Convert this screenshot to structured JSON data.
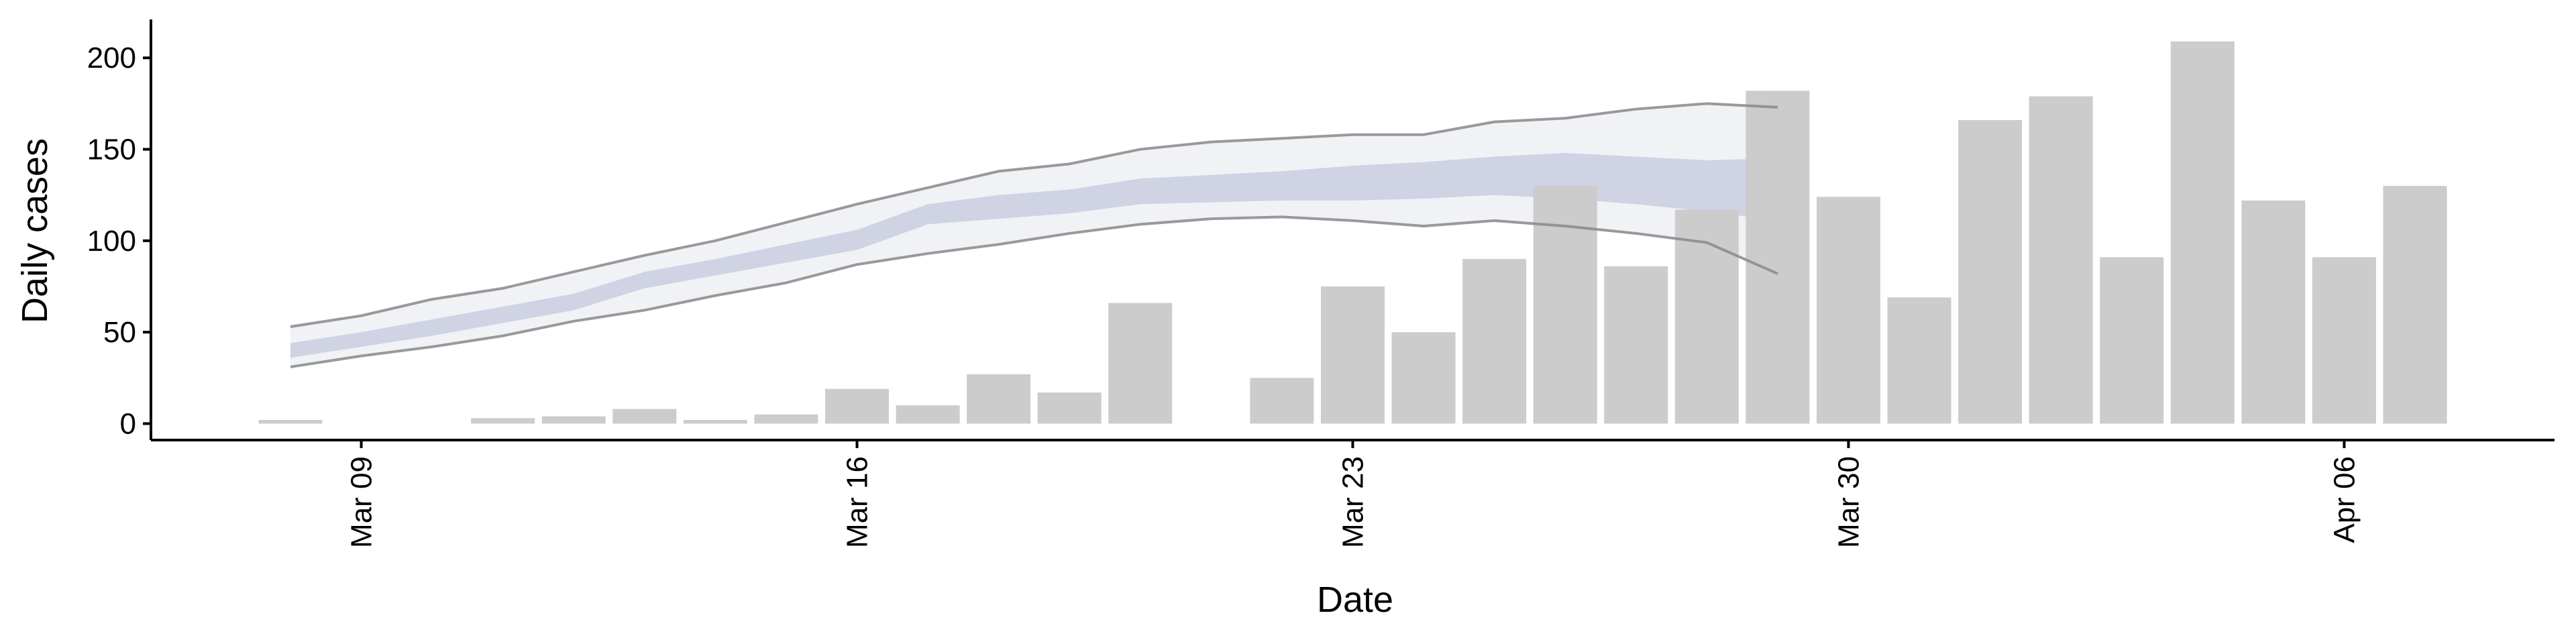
{
  "chart_data": {
    "type": "bar",
    "xlabel": "Date",
    "ylabel": "Daily cases",
    "categories": [
      null,
      "Mar 09",
      null,
      null,
      null,
      null,
      null,
      null,
      "Mar 16",
      null,
      null,
      null,
      null,
      null,
      null,
      "Mar 23",
      null,
      null,
      null,
      null,
      null,
      null,
      "Mar 30",
      null,
      null,
      null,
      null,
      null,
      null,
      "Apr 06",
      null
    ],
    "values": [
      2,
      null,
      null,
      3,
      4,
      8,
      2,
      5,
      19,
      10,
      27,
      17,
      66,
      null,
      25,
      75,
      50,
      90,
      130,
      86,
      117,
      182,
      124,
      69,
      166,
      179,
      91,
      209,
      122,
      91,
      130
    ],
    "color": "#cccccc",
    "bands": [
      {
        "color": "#eef0f5",
        "line_color": "#888888",
        "upper": [
          53,
          59,
          68,
          74,
          83,
          92,
          100,
          110,
          120,
          129,
          138,
          142,
          150,
          154,
          156,
          158,
          158,
          165,
          167,
          172,
          175,
          173,
          null,
          null,
          null,
          null,
          null,
          null,
          null,
          null,
          null
        ],
        "lower": [
          31,
          37,
          42,
          48,
          56,
          62,
          70,
          77,
          87,
          93,
          98,
          104,
          109,
          112,
          113,
          111,
          108,
          111,
          108,
          104,
          99,
          82,
          null,
          null,
          null,
          null,
          null,
          null,
          null,
          null,
          null
        ]
      },
      {
        "color": "#c9cee0",
        "upper": [
          44,
          50,
          57,
          64,
          71,
          83,
          90,
          98,
          106,
          120,
          125,
          128,
          134,
          136,
          138,
          141,
          143,
          146,
          148,
          146,
          144,
          145,
          null,
          null,
          null,
          null,
          null,
          null,
          null,
          null,
          null
        ],
        "lower": [
          36,
          42,
          48,
          55,
          62,
          74,
          81,
          88,
          95,
          109,
          112,
          115,
          120,
          121,
          122,
          122,
          123,
          125,
          123,
          120,
          116,
          111,
          null,
          null,
          null,
          null,
          null,
          null,
          null,
          null,
          null
        ]
      }
    ],
    "ylim": [
      -9,
      221
    ],
    "yticks": [
      0,
      50,
      100,
      150,
      200
    ]
  }
}
